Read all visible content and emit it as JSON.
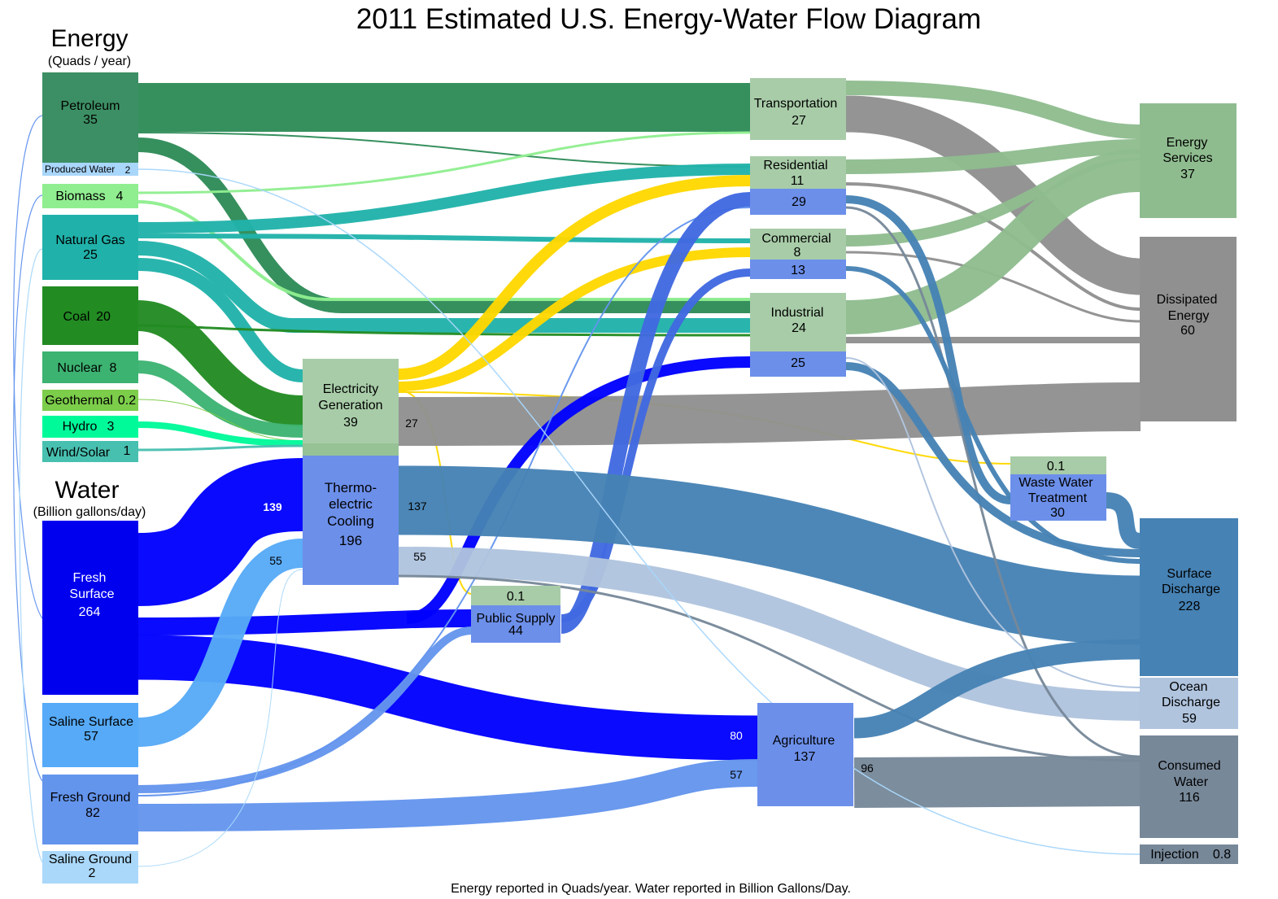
{
  "title": "2011 Estimated U.S. Energy-Water Flow Diagram",
  "footnote": "Energy reported in Quads/year. Water reported in Billion Gallons/Day.",
  "energy_heading": "Energy",
  "energy_units": "(Quads / year)",
  "water_heading": "Water",
  "water_units": "(Billion gallons/day)",
  "colors": {
    "petroleum": "#2e8b57",
    "biomass": "#90ee90",
    "natural_gas": "#20b2aa",
    "coal": "#228b22",
    "nuclear": "#3cb371",
    "geothermal": "#7ccd4a",
    "hydro": "#00fa9a",
    "wind_solar": "#48c0b0",
    "electricity": "#ffd700",
    "fresh_surface": "#0000ff",
    "saline_surface": "#56aaf7",
    "fresh_ground": "#6495ed",
    "saline_ground": "#aad8fa",
    "produced_water": "#a9d6fb",
    "service_green": "#8fbc8f",
    "sector_green": "#a8cca8",
    "sector_blue": "#6c8fea",
    "dissipated": "#909090",
    "discharge": "#4682b4",
    "ocean": "#b0c4de",
    "consumed": "#778899"
  },
  "sources": {
    "petroleum": {
      "name": "Petroleum",
      "value": "35"
    },
    "produced_water": {
      "name": "Produced Water",
      "value": "2"
    },
    "biomass": {
      "name": "Biomass",
      "value": "4"
    },
    "natural_gas": {
      "name": "Natural Gas",
      "value": "25"
    },
    "coal": {
      "name": "Coal",
      "value": "20"
    },
    "nuclear": {
      "name": "Nuclear",
      "value": "8"
    },
    "geothermal": {
      "name": "Geothermal",
      "value": "0.2"
    },
    "hydro": {
      "name": "Hydro",
      "value": "3"
    },
    "wind_solar": {
      "name": "Wind/Solar",
      "value": "1"
    },
    "fresh_surface": {
      "name_1": "Fresh",
      "name_2": "Surface",
      "value": "264"
    },
    "saline_surface": {
      "name": "Saline Surface",
      "value": "57"
    },
    "fresh_ground": {
      "name": "Fresh Ground",
      "value": "82"
    },
    "saline_ground": {
      "name": "Saline Ground",
      "value": "2"
    }
  },
  "conversion": {
    "electricity": {
      "name_1": "Electricity",
      "name_2": "Generation",
      "value": "39"
    },
    "thermo": {
      "name_1": "Thermo-",
      "name_2": "electric",
      "name_3": "Cooling",
      "value": "196"
    },
    "public_supply": {
      "energy_value": "0.1",
      "name": "Public Supply",
      "value": "44"
    },
    "waste_water": {
      "energy_value": "0.1",
      "name_1": "Waste Water",
      "name_2": "Treatment",
      "value": "30"
    }
  },
  "sectors": {
    "transportation": {
      "name": "Transportation",
      "value": "27"
    },
    "residential": {
      "name": "Residential",
      "energy_value": "11",
      "water_value": "29"
    },
    "commercial": {
      "name": "Commercial",
      "energy_value": "8",
      "water_value": "13"
    },
    "industrial": {
      "name": "Industrial",
      "energy_value": "24",
      "water_value": "25"
    },
    "agriculture": {
      "name": "Agriculture",
      "value": "137"
    }
  },
  "outputs": {
    "energy_services": {
      "name_1": "Energy",
      "name_2": "Services",
      "value": "37"
    },
    "dissipated": {
      "name_1": "Dissipated",
      "name_2": "Energy",
      "value": "60"
    },
    "surface_discharge": {
      "name_1": "Surface",
      "name_2": "Discharge",
      "value": "228"
    },
    "ocean_discharge": {
      "name_1": "Ocean",
      "name_2": "Discharge",
      "value": "59"
    },
    "consumed_water": {
      "name_1": "Consumed",
      "name_2": "Water",
      "value": "116"
    },
    "injection": {
      "name": "Injection",
      "value": "0.8"
    }
  },
  "flow_labels": {
    "fresh_to_thermo": "139",
    "saline_to_thermo": "55",
    "elec_dissipated": "27",
    "thermo_discharge": "137",
    "thermo_ocean": "55",
    "fresh_to_ag": "80",
    "ground_to_ag": "57",
    "ag_consumed": "96"
  }
}
